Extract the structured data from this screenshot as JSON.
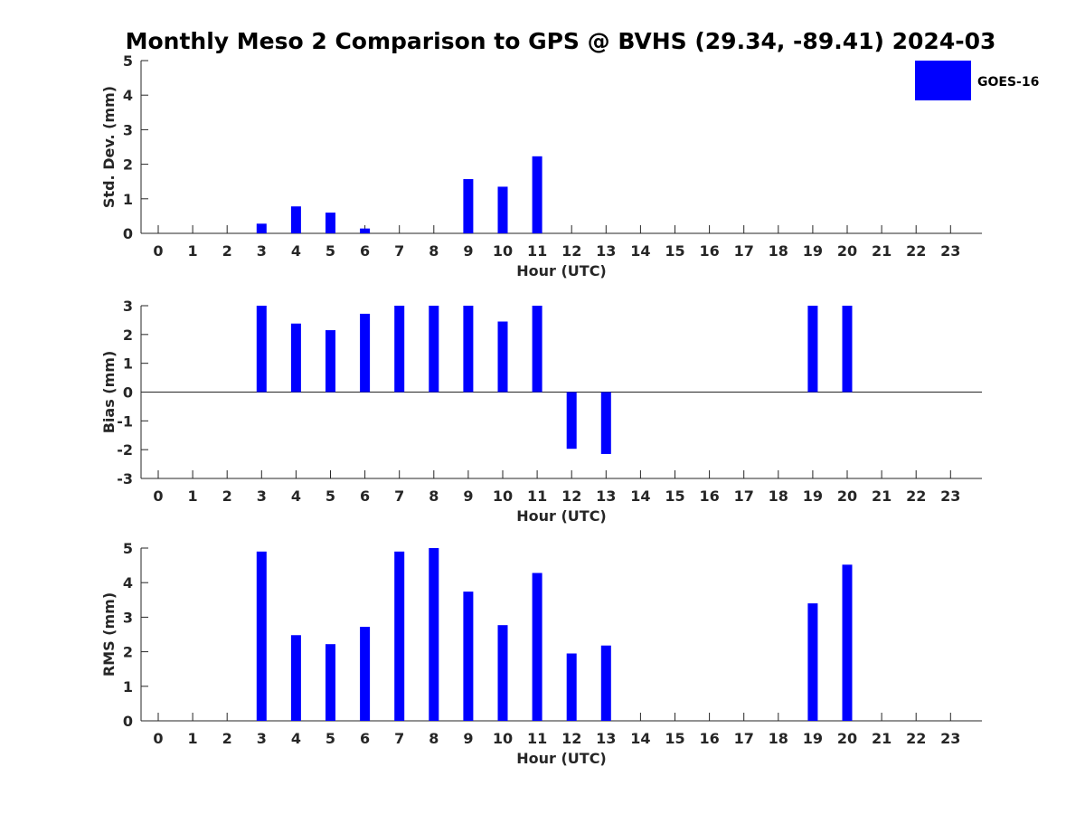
{
  "title": "Monthly Meso 2 Comparison to GPS @ BVHS (29.34, -89.41) 2024-03",
  "legend": {
    "label": "GOES-16",
    "color": "#0000ff",
    "placement": "top-right"
  },
  "chart_data": [
    {
      "type": "bar",
      "xlabel": "Hour (UTC)",
      "ylabel": "Std. Dev. (mm)",
      "categories": [
        "0",
        "1",
        "2",
        "3",
        "4",
        "5",
        "6",
        "7",
        "8",
        "9",
        "10",
        "11",
        "12",
        "13",
        "14",
        "15",
        "16",
        "17",
        "18",
        "19",
        "20",
        "21",
        "22",
        "23"
      ],
      "yticks": [
        "0",
        "1",
        "2",
        "3",
        "4",
        "5"
      ],
      "ylim": [
        0,
        5
      ],
      "series": [
        {
          "name": "GOES-16",
          "color": "#0000ff",
          "values": [
            null,
            null,
            null,
            0.28,
            0.78,
            0.6,
            0.14,
            null,
            null,
            1.57,
            1.35,
            2.23,
            null,
            null,
            null,
            null,
            null,
            null,
            null,
            null,
            null,
            null,
            null,
            null
          ]
        }
      ]
    },
    {
      "type": "bar",
      "xlabel": "Hour (UTC)",
      "ylabel": "Bias (mm)",
      "categories": [
        "0",
        "1",
        "2",
        "3",
        "4",
        "5",
        "6",
        "7",
        "8",
        "9",
        "10",
        "11",
        "12",
        "13",
        "14",
        "15",
        "16",
        "17",
        "18",
        "19",
        "20",
        "21",
        "22",
        "23"
      ],
      "yticks": [
        "-3",
        "-2",
        "-1",
        "0",
        "1",
        "2",
        "3"
      ],
      "ylim": [
        -3,
        3
      ],
      "zero_line": true,
      "series": [
        {
          "name": "GOES-16",
          "color": "#0000ff",
          "values": [
            null,
            null,
            null,
            3.0,
            2.38,
            2.15,
            2.72,
            3.0,
            3.0,
            3.0,
            2.45,
            3.0,
            -1.97,
            -2.15,
            null,
            null,
            null,
            null,
            null,
            3.0,
            3.0,
            null,
            null,
            null
          ]
        }
      ]
    },
    {
      "type": "bar",
      "xlabel": "Hour (UTC)",
      "ylabel": "RMS (mm)",
      "categories": [
        "0",
        "1",
        "2",
        "3",
        "4",
        "5",
        "6",
        "7",
        "8",
        "9",
        "10",
        "11",
        "12",
        "13",
        "14",
        "15",
        "16",
        "17",
        "18",
        "19",
        "20",
        "21",
        "22",
        "23"
      ],
      "yticks": [
        "0",
        "1",
        "2",
        "3",
        "4",
        "5"
      ],
      "ylim": [
        0,
        5
      ],
      "series": [
        {
          "name": "GOES-16",
          "color": "#0000ff",
          "values": [
            null,
            null,
            null,
            4.9,
            2.48,
            2.22,
            2.72,
            4.9,
            5.0,
            3.74,
            2.77,
            4.28,
            1.95,
            2.18,
            null,
            null,
            null,
            null,
            null,
            3.4,
            4.52,
            null,
            null,
            null
          ]
        }
      ]
    }
  ]
}
